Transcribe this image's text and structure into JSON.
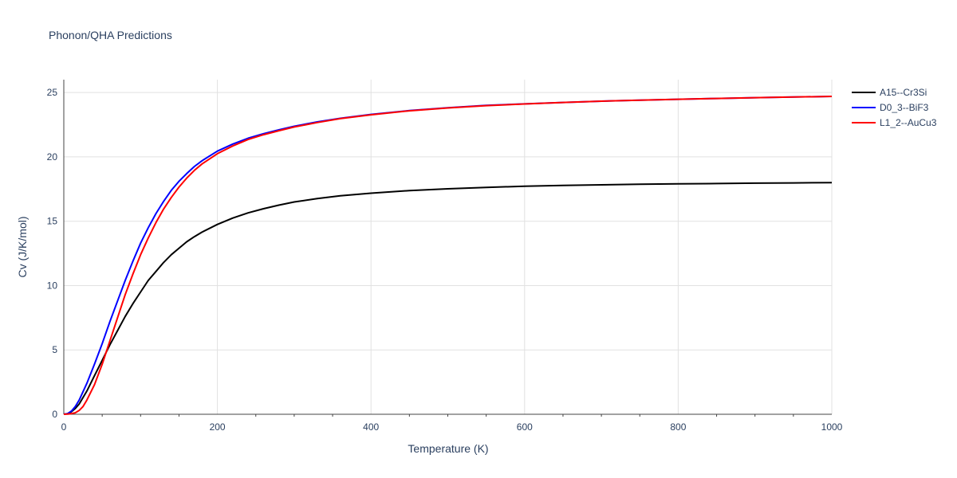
{
  "chart_data": {
    "type": "line",
    "title": "Phonon/QHA Predictions",
    "xlabel": "Temperature (K)",
    "ylabel": "Cv (J/K/mol)",
    "xlim": [
      0,
      1000
    ],
    "ylim": [
      0,
      26
    ],
    "xticks": [
      0,
      200,
      400,
      600,
      800,
      1000
    ],
    "yticks": [
      0,
      5,
      10,
      15,
      20,
      25
    ],
    "grid": true,
    "legend_position": "top-right",
    "series": [
      {
        "name": "A15--Cr3Si",
        "color": "#000000",
        "x": [
          0,
          5,
          10,
          15,
          20,
          30,
          40,
          50,
          60,
          70,
          80,
          90,
          100,
          110,
          120,
          130,
          140,
          150,
          160,
          170,
          180,
          200,
          220,
          240,
          260,
          280,
          300,
          330,
          360,
          400,
          450,
          500,
          550,
          600,
          650,
          700,
          750,
          800,
          850,
          900,
          950,
          1000
        ],
        "y": [
          0,
          0.05,
          0.2,
          0.45,
          0.8,
          1.8,
          3.0,
          4.2,
          5.4,
          6.5,
          7.6,
          8.6,
          9.5,
          10.4,
          11.1,
          11.8,
          12.4,
          12.9,
          13.4,
          13.8,
          14.15,
          14.75,
          15.25,
          15.65,
          15.97,
          16.25,
          16.5,
          16.76,
          16.98,
          17.18,
          17.38,
          17.52,
          17.63,
          17.72,
          17.78,
          17.83,
          17.87,
          17.9,
          17.93,
          17.96,
          17.98,
          18.0
        ]
      },
      {
        "name": "D0_3--BiF3",
        "color": "#0000ff",
        "x": [
          0,
          5,
          10,
          15,
          20,
          30,
          40,
          50,
          60,
          70,
          80,
          90,
          100,
          110,
          120,
          130,
          140,
          150,
          160,
          170,
          180,
          200,
          220,
          240,
          260,
          280,
          300,
          330,
          360,
          400,
          450,
          500,
          550,
          600,
          650,
          700,
          750,
          800,
          850,
          900,
          950,
          1000
        ],
        "y": [
          0,
          0.05,
          0.25,
          0.6,
          1.1,
          2.4,
          3.9,
          5.5,
          7.2,
          8.8,
          10.4,
          11.9,
          13.3,
          14.5,
          15.6,
          16.55,
          17.4,
          18.1,
          18.7,
          19.25,
          19.7,
          20.45,
          21.0,
          21.45,
          21.8,
          22.1,
          22.38,
          22.72,
          23.0,
          23.3,
          23.6,
          23.82,
          24.0,
          24.12,
          24.23,
          24.33,
          24.41,
          24.48,
          24.54,
          24.6,
          24.65,
          24.7
        ]
      },
      {
        "name": "L1_2--AuCu3",
        "color": "#ff0000",
        "x": [
          0,
          5,
          10,
          15,
          20,
          25,
          30,
          40,
          50,
          60,
          70,
          80,
          90,
          100,
          110,
          120,
          130,
          140,
          150,
          160,
          170,
          180,
          200,
          220,
          240,
          260,
          280,
          300,
          330,
          360,
          400,
          450,
          500,
          550,
          600,
          650,
          700,
          750,
          800,
          850,
          900,
          950,
          1000
        ],
        "y": [
          0,
          0.01,
          0.05,
          0.12,
          0.3,
          0.6,
          1.1,
          2.3,
          3.9,
          5.7,
          7.5,
          9.3,
          10.9,
          12.4,
          13.7,
          14.9,
          15.95,
          16.85,
          17.65,
          18.35,
          18.95,
          19.45,
          20.25,
          20.85,
          21.35,
          21.72,
          22.03,
          22.32,
          22.67,
          22.97,
          23.27,
          23.58,
          23.8,
          23.98,
          24.11,
          24.23,
          24.33,
          24.41,
          24.48,
          24.54,
          24.6,
          24.65,
          24.7
        ]
      }
    ]
  }
}
